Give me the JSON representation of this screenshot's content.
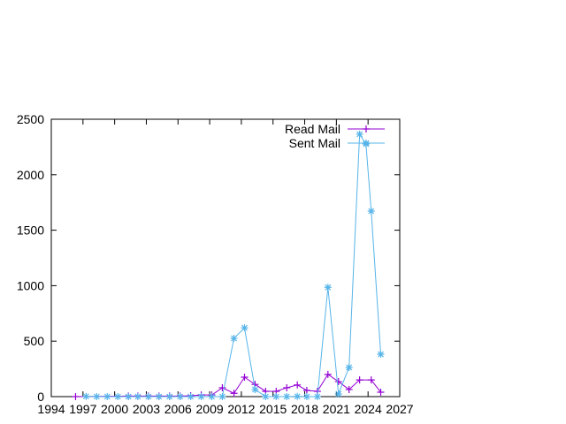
{
  "chart_data": {
    "type": "line",
    "title": "",
    "xlabel": "",
    "ylabel": "",
    "xlim": [
      1994,
      2027
    ],
    "ylim": [
      0,
      2500
    ],
    "x_ticks": [
      "1994",
      "1997",
      "2000",
      "2003",
      "2006",
      "2009",
      "2012",
      "2015",
      "2018",
      "2021",
      "2024",
      "2027"
    ],
    "y_ticks": [
      "0",
      "500",
      "1000",
      "1500",
      "2000",
      "2500"
    ],
    "grid": false,
    "legend_position": "top-right",
    "series": [
      {
        "name": "Read Mail",
        "color": "#9400d3",
        "marker": "plus",
        "x": [
          1996.3,
          2001.3,
          2002.2,
          2003.2,
          2004.2,
          2005.2,
          2006.2,
          2007.2,
          2008.2,
          2009.2,
          2010.2,
          2011.3,
          2012.3,
          2013.3,
          2014.3,
          2015.3,
          2016.3,
          2017.3,
          2018.2,
          2019.2,
          2020.2,
          2021.2,
          2022.2,
          2023.2,
          2024.3,
          2025.2
        ],
        "y": [
          0,
          5,
          5,
          5,
          5,
          5,
          5,
          8,
          15,
          15,
          80,
          30,
          175,
          110,
          48,
          48,
          80,
          105,
          56,
          48,
          200,
          135,
          64,
          150,
          150,
          40
        ]
      },
      {
        "name": "Sent Mail",
        "color": "#56b4e9",
        "marker": "star",
        "x": [
          1997.3,
          1998.3,
          1999.3,
          2000.3,
          2001.3,
          2002.2,
          2003.2,
          2004.2,
          2005.2,
          2006.2,
          2007.2,
          2008.2,
          2009.2,
          2010.2,
          2011.3,
          2012.3,
          2013.3,
          2014.3,
          2015.3,
          2016.3,
          2017.3,
          2018.2,
          2019.2,
          2020.2,
          2021.2,
          2022.2,
          2023.2,
          2023.8,
          2024.3,
          2025.2
        ],
        "y": [
          2,
          0,
          0,
          0,
          0,
          0,
          0,
          0,
          0,
          0,
          0,
          0,
          0,
          0,
          525,
          620,
          64,
          0,
          0,
          0,
          2,
          0,
          0,
          985,
          24,
          263,
          2365,
          2277,
          1672,
          382
        ]
      }
    ]
  }
}
